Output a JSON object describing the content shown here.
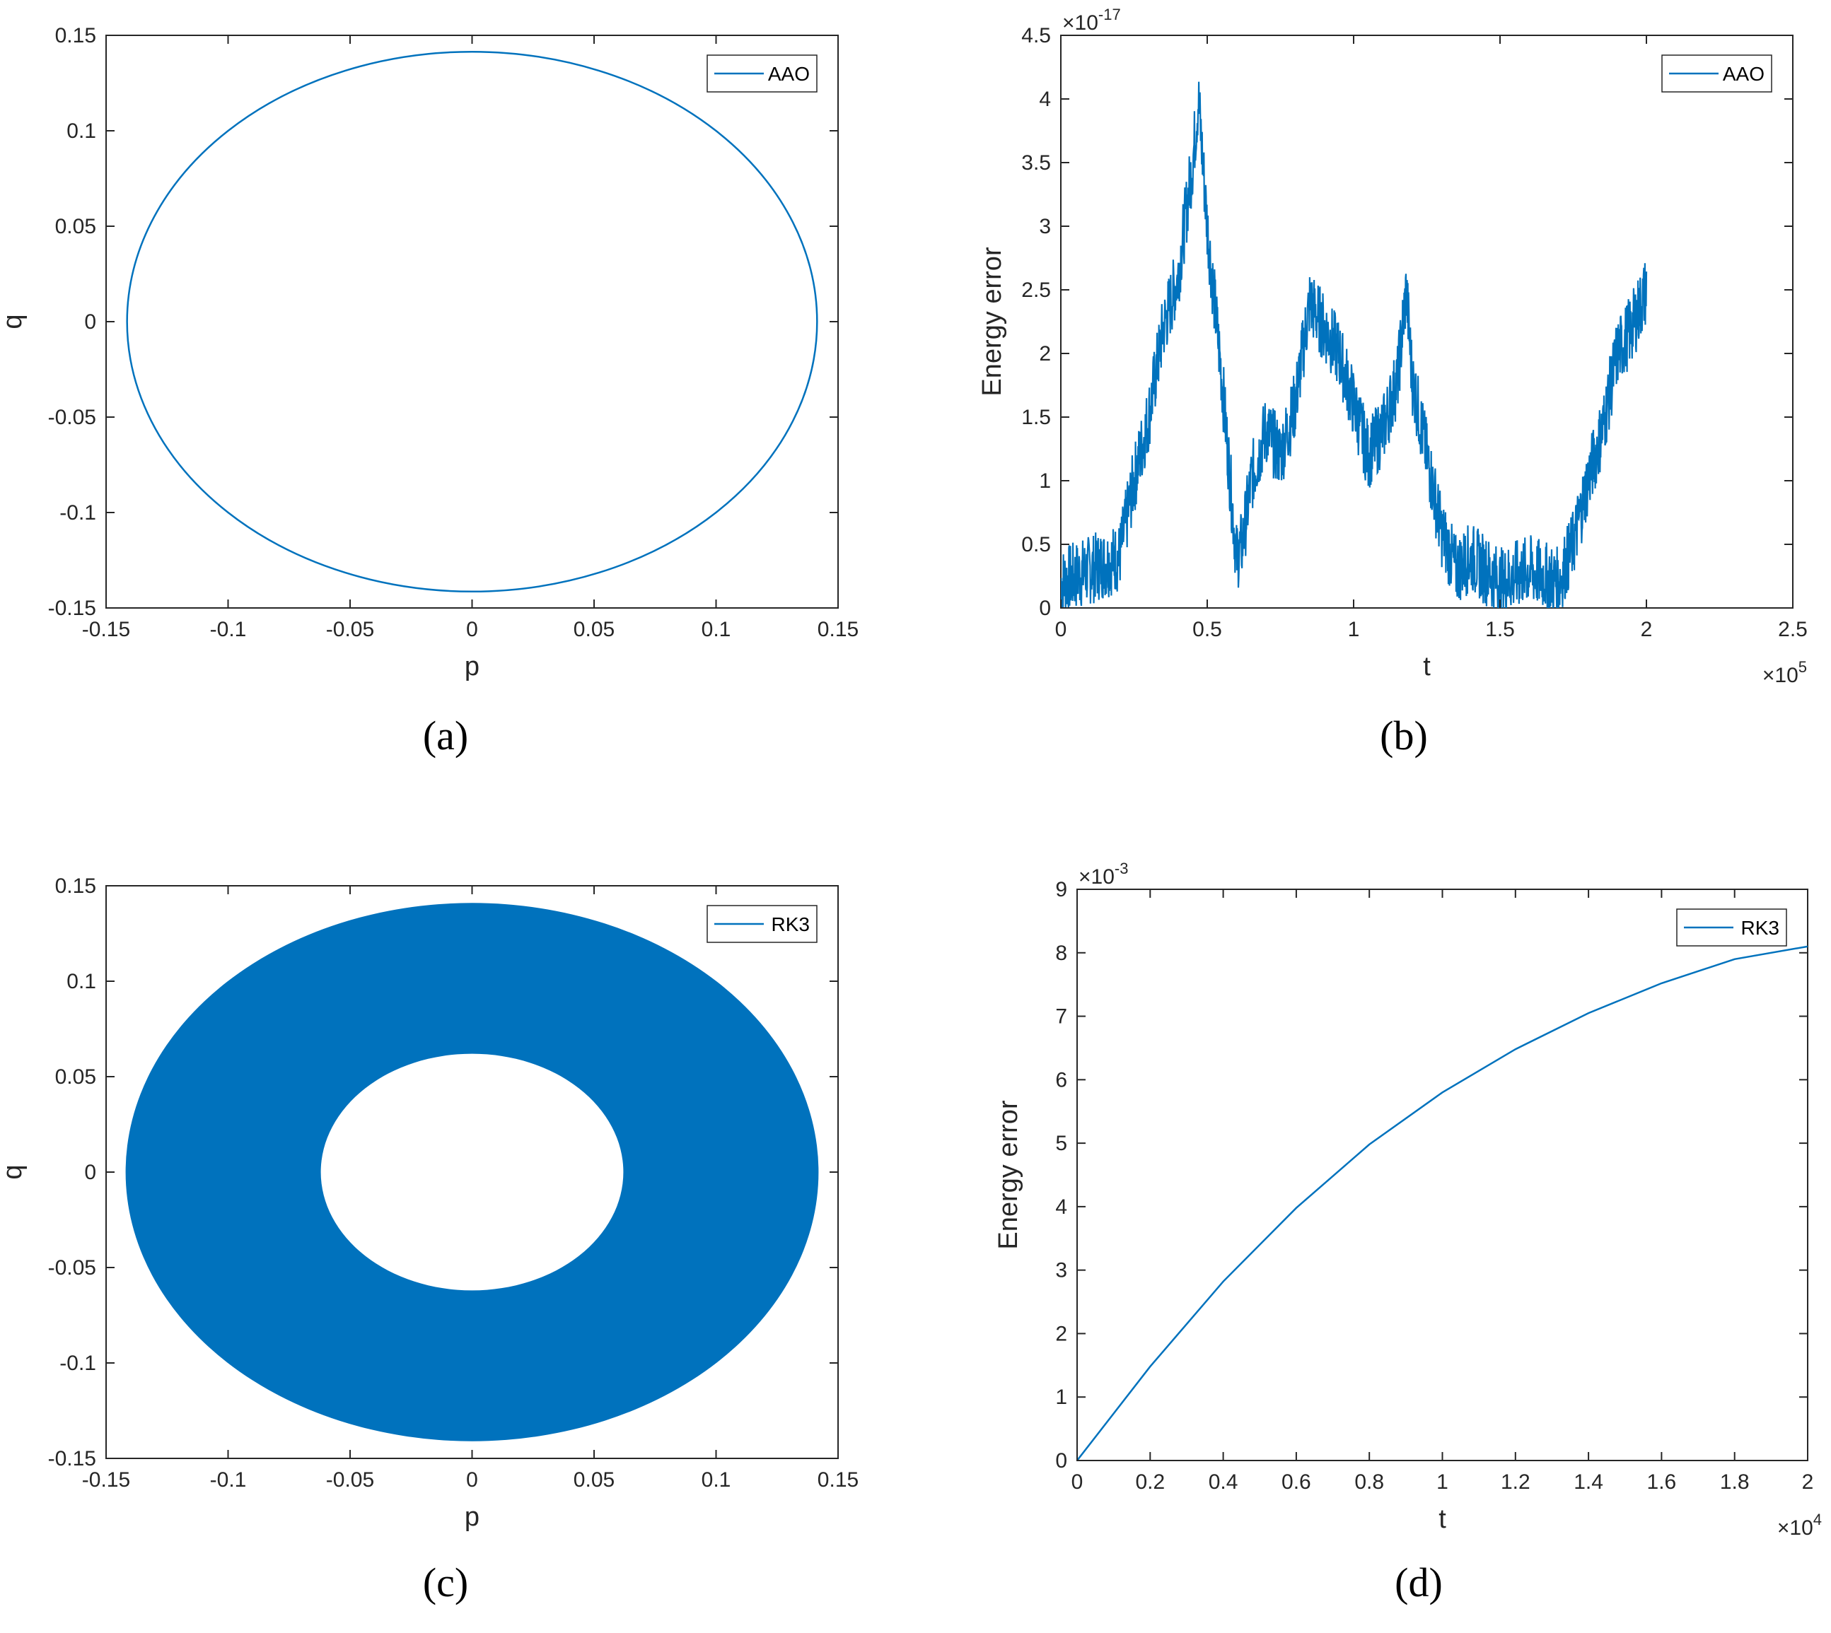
{
  "colors": {
    "series": "#0072BD",
    "axis": "#262626",
    "background": "#ffffff"
  },
  "chart_data": [
    {
      "id": "a",
      "caption": "(a)",
      "type": "line",
      "xlabel": "p",
      "ylabel": "q",
      "xlim": [
        -0.15,
        0.15
      ],
      "ylim": [
        -0.15,
        0.15
      ],
      "xticks": [
        "-0.15",
        "-0.1",
        "-0.05",
        "0",
        "0.05",
        "0.1",
        "0.15"
      ],
      "yticks": [
        "-0.15",
        "-0.1",
        "-0.05",
        "0",
        "0.05",
        "0.1",
        "0.15"
      ],
      "legend": {
        "position": "top-right",
        "entries": [
          "AAO"
        ]
      },
      "grid": false,
      "series": [
        {
          "name": "AAO",
          "shape": "ellipse",
          "center": [
            0,
            0
          ],
          "radius_p": 0.1414,
          "radius_q": 0.1414
        }
      ]
    },
    {
      "id": "b",
      "caption": "(b)",
      "type": "line",
      "xlabel": "t",
      "ylabel": "Energy error",
      "xlim": [
        0,
        250000
      ],
      "ylim": [
        0,
        4.5e-17
      ],
      "x_exponent_label": "×10^5",
      "y_exponent_label": "×10^-17",
      "xticks": [
        "0",
        "0.5",
        "1",
        "1.5",
        "2",
        "2.5"
      ],
      "yticks": [
        "0",
        "0.5",
        "1",
        "1.5",
        "2",
        "2.5",
        "3",
        "3.5",
        "4",
        "4.5"
      ],
      "legend": {
        "position": "top-right",
        "entries": [
          "AAO"
        ]
      },
      "grid": false,
      "series": [
        {
          "name": "AAO",
          "x": [
            0,
            10000,
            20000,
            25000,
            30000,
            35000,
            40000,
            45000,
            47000,
            50000,
            55000,
            60000,
            62000,
            65000,
            70000,
            75000,
            80000,
            85000,
            90000,
            95000,
            100000,
            105000,
            110000,
            115000,
            118000,
            120000,
            125000,
            130000,
            135000,
            140000,
            150000,
            160000,
            170000,
            175000,
            180000,
            185000,
            190000,
            195000,
            200000
          ],
          "y": [
            2e-18,
            3e-18,
            4e-18,
            1e-17,
            1.5e-17,
            2.2e-17,
            2.6e-17,
            3.5e-17,
            4e-17,
            3e-17,
            1.8e-17,
            4e-18,
            5e-18,
            1e-17,
            1.4e-17,
            1.2e-17,
            1.6e-17,
            2.4e-17,
            2.2e-17,
            2e-17,
            1.6e-17,
            1.2e-17,
            1.4e-17,
            1.8e-17,
            2.5e-17,
            1.8e-17,
            1.2e-17,
            6e-18,
            3e-18,
            4e-18,
            2e-18,
            3e-18,
            2e-18,
            5e-18,
            1e-17,
            1.4e-17,
            2e-17,
            2.2e-17,
            2.5e-17
          ],
          "noise_amplitude": 2.8e-18
        }
      ]
    },
    {
      "id": "c",
      "caption": "(c)",
      "type": "line",
      "xlabel": "p",
      "ylabel": "q",
      "xlim": [
        -0.15,
        0.15
      ],
      "ylim": [
        -0.15,
        0.15
      ],
      "xticks": [
        "-0.15",
        "-0.1",
        "-0.05",
        "0",
        "0.05",
        "0.1",
        "0.15"
      ],
      "yticks": [
        "-0.15",
        "-0.1",
        "-0.05",
        "0",
        "0.05",
        "0.1",
        "0.15"
      ],
      "legend": {
        "position": "top-right",
        "entries": [
          "RK3"
        ]
      },
      "grid": false,
      "series": [
        {
          "name": "RK3",
          "shape": "filled-ring",
          "center": [
            0,
            0
          ],
          "outer_radius_p": 0.142,
          "outer_radius_q": 0.141,
          "inner_radius_p": 0.062,
          "inner_radius_q": 0.062
        }
      ]
    },
    {
      "id": "d",
      "caption": "(d)",
      "type": "line",
      "xlabel": "t",
      "ylabel": "Energy error",
      "xlim": [
        0,
        20000
      ],
      "ylim": [
        0,
        0.009
      ],
      "x_exponent_label": "×10^4",
      "y_exponent_label": "×10^-3",
      "xticks": [
        "0",
        "0.2",
        "0.4",
        "0.6",
        "0.8",
        "1",
        "1.2",
        "1.4",
        "1.6",
        "1.8",
        "2"
      ],
      "yticks": [
        "0",
        "1",
        "2",
        "3",
        "4",
        "5",
        "6",
        "7",
        "8",
        "9"
      ],
      "legend": {
        "position": "top-right",
        "entries": [
          "RK3"
        ]
      },
      "grid": false,
      "series": [
        {
          "name": "RK3",
          "x": [
            0,
            2000,
            4000,
            6000,
            8000,
            10000,
            12000,
            14000,
            16000,
            18000,
            20000
          ],
          "y": [
            0,
            0.00148,
            0.00282,
            0.00398,
            0.00498,
            0.0058,
            0.00648,
            0.00705,
            0.00752,
            0.0079,
            0.0081
          ]
        }
      ]
    }
  ]
}
